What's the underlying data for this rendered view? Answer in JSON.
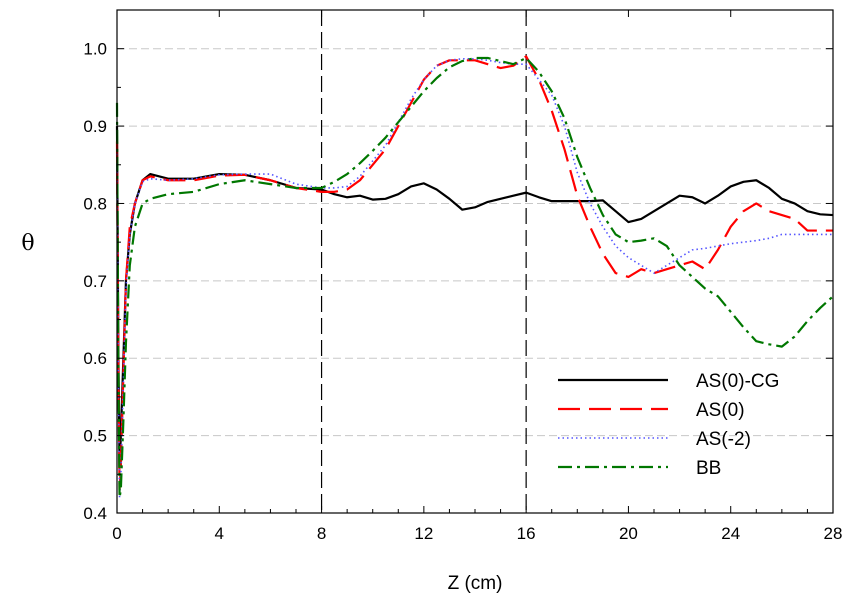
{
  "chart_data": {
    "type": "line",
    "title": "",
    "xlabel": "Z (cm)",
    "ylabel": "θ",
    "xlim": [
      0,
      28
    ],
    "ylim": [
      0.4,
      1.05
    ],
    "xticks": [
      0,
      4,
      8,
      12,
      16,
      20,
      24,
      28
    ],
    "yticks": [
      0.4,
      0.5,
      0.6,
      0.7,
      0.8,
      0.9,
      1.0
    ],
    "xtick_labels": [
      "0",
      "4",
      "8",
      "12",
      "16",
      "20",
      "24",
      "28"
    ],
    "ytick_labels": [
      "0.4",
      "0.5",
      "0.6",
      "0.7",
      "0.8",
      "0.9",
      "1.0"
    ],
    "grid": "horizontal dashed",
    "vertical_markers": [
      8,
      16
    ],
    "legend_position": "bottom-right",
    "series": [
      {
        "name": "AS(0)-CG",
        "color": "#000000",
        "dash": "solid",
        "x": [
          0,
          0.05,
          0.1,
          0.15,
          0.25,
          0.35,
          0.5,
          0.7,
          1,
          1.3,
          2,
          3,
          4,
          5,
          6,
          7,
          8,
          8.5,
          9,
          9.5,
          10,
          10.5,
          11,
          11.5,
          12,
          12.5,
          13,
          13.5,
          14,
          14.5,
          15,
          15.5,
          16,
          16.5,
          17,
          17.5,
          18,
          18.5,
          19,
          19.5,
          20,
          20.5,
          21,
          21.5,
          22,
          22.5,
          23,
          23.5,
          24,
          24.5,
          25,
          25.5,
          26,
          26.5,
          27,
          27.5,
          28
        ],
        "y": [
          0.9,
          0.62,
          0.46,
          0.5,
          0.6,
          0.7,
          0.76,
          0.8,
          0.83,
          0.838,
          0.832,
          0.832,
          0.838,
          0.837,
          0.83,
          0.82,
          0.818,
          0.812,
          0.808,
          0.81,
          0.805,
          0.806,
          0.812,
          0.822,
          0.826,
          0.818,
          0.806,
          0.792,
          0.795,
          0.802,
          0.806,
          0.81,
          0.814,
          0.808,
          0.803,
          0.803,
          0.803,
          0.803,
          0.804,
          0.79,
          0.776,
          0.78,
          0.79,
          0.8,
          0.81,
          0.808,
          0.8,
          0.81,
          0.822,
          0.828,
          0.83,
          0.82,
          0.806,
          0.8,
          0.79,
          0.786,
          0.785
        ]
      },
      {
        "name": "AS(0)",
        "color": "#ff0000",
        "dash": "long-dash",
        "x": [
          0,
          0.05,
          0.1,
          0.15,
          0.25,
          0.35,
          0.5,
          0.7,
          1,
          1.3,
          2,
          3,
          4,
          5,
          6,
          7,
          8,
          8.5,
          9,
          9.5,
          10,
          10.5,
          11,
          11.5,
          12,
          12.5,
          13,
          13.5,
          14,
          14.5,
          15,
          15.5,
          16,
          16.5,
          17,
          17.5,
          18,
          18.5,
          19,
          19.5,
          20,
          20.5,
          21,
          21.5,
          22,
          22.5,
          23,
          23.5,
          24,
          24.5,
          25,
          25.5,
          26,
          26.5,
          27,
          27.5,
          28
        ],
        "y": [
          0.88,
          0.6,
          0.43,
          0.46,
          0.58,
          0.7,
          0.77,
          0.8,
          0.83,
          0.835,
          0.83,
          0.83,
          0.836,
          0.837,
          0.83,
          0.82,
          0.815,
          0.815,
          0.818,
          0.83,
          0.85,
          0.87,
          0.9,
          0.93,
          0.96,
          0.978,
          0.985,
          0.985,
          0.985,
          0.98,
          0.975,
          0.978,
          0.99,
          0.96,
          0.92,
          0.87,
          0.81,
          0.77,
          0.735,
          0.71,
          0.705,
          0.715,
          0.71,
          0.715,
          0.72,
          0.725,
          0.715,
          0.74,
          0.77,
          0.79,
          0.8,
          0.79,
          0.785,
          0.78,
          0.765,
          0.765,
          0.765
        ]
      },
      {
        "name": "AS(-2)",
        "color": "#5555ff",
        "dash": "dotted",
        "x": [
          0,
          0.05,
          0.1,
          0.15,
          0.25,
          0.35,
          0.5,
          0.7,
          1,
          1.3,
          2,
          3,
          4,
          5,
          6,
          7,
          8,
          8.5,
          9,
          9.5,
          10,
          10.5,
          11,
          11.5,
          12,
          12.5,
          13,
          13.5,
          14,
          14.5,
          15,
          15.5,
          16,
          16.5,
          17,
          17.5,
          18,
          18.5,
          19,
          19.5,
          20,
          20.5,
          21,
          21.5,
          22,
          22.5,
          23,
          23.5,
          24,
          24.5,
          25,
          25.5,
          26,
          26.5,
          27,
          27.5,
          28
        ],
        "y": [
          0.87,
          0.58,
          0.42,
          0.45,
          0.57,
          0.69,
          0.76,
          0.8,
          0.828,
          0.832,
          0.83,
          0.832,
          0.837,
          0.838,
          0.838,
          0.825,
          0.82,
          0.82,
          0.822,
          0.835,
          0.855,
          0.875,
          0.905,
          0.935,
          0.96,
          0.978,
          0.985,
          0.987,
          0.987,
          0.985,
          0.982,
          0.98,
          0.98,
          0.96,
          0.94,
          0.9,
          0.84,
          0.8,
          0.77,
          0.745,
          0.73,
          0.72,
          0.71,
          0.72,
          0.73,
          0.74,
          0.742,
          0.745,
          0.748,
          0.75,
          0.752,
          0.755,
          0.76,
          0.76,
          0.76,
          0.76,
          0.76
        ]
      },
      {
        "name": "BB",
        "color": "#007700",
        "dash": "dash-dot",
        "x": [
          0,
          0.05,
          0.1,
          0.15,
          0.25,
          0.35,
          0.5,
          0.7,
          1,
          1.3,
          2,
          3,
          4,
          5,
          6,
          7,
          8,
          8.5,
          9,
          9.5,
          10,
          10.5,
          11,
          11.5,
          12,
          12.5,
          13,
          13.5,
          14,
          14.5,
          15,
          15.5,
          16,
          16.5,
          17,
          17.5,
          18,
          18.5,
          19,
          19.5,
          20,
          20.5,
          21,
          21.5,
          22,
          22.5,
          23,
          23.5,
          24,
          24.5,
          25,
          25.5,
          26,
          26.5,
          27,
          27.5,
          28
        ],
        "y": [
          0.93,
          0.6,
          0.42,
          0.43,
          0.52,
          0.62,
          0.72,
          0.77,
          0.8,
          0.806,
          0.812,
          0.815,
          0.825,
          0.83,
          0.825,
          0.82,
          0.82,
          0.828,
          0.838,
          0.852,
          0.868,
          0.885,
          0.905,
          0.925,
          0.945,
          0.962,
          0.976,
          0.984,
          0.988,
          0.988,
          0.984,
          0.98,
          0.988,
          0.97,
          0.945,
          0.91,
          0.86,
          0.82,
          0.785,
          0.76,
          0.75,
          0.752,
          0.755,
          0.745,
          0.72,
          0.705,
          0.69,
          0.68,
          0.66,
          0.64,
          0.622,
          0.618,
          0.615,
          0.628,
          0.648,
          0.665,
          0.68
        ]
      }
    ]
  }
}
